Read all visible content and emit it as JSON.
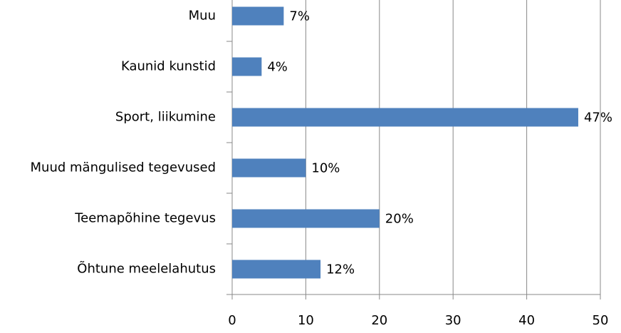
{
  "chart_data": {
    "type": "bar",
    "orientation": "horizontal",
    "categories": [
      "Muu",
      "Kaunid kunstid",
      "Sport, liikumine",
      "Muud mängulised tegevused",
      "Teemapõhine tegevus",
      "Õhtune meelelahutus"
    ],
    "values": [
      7,
      4,
      47,
      10,
      20,
      12
    ],
    "value_labels": [
      "7%",
      "4%",
      "47%",
      "10%",
      "20%",
      "12%"
    ],
    "color": "#4f81bd",
    "xlim": [
      0,
      50
    ],
    "xticks": [
      0,
      10,
      20,
      30,
      40,
      50
    ],
    "grid": true
  }
}
